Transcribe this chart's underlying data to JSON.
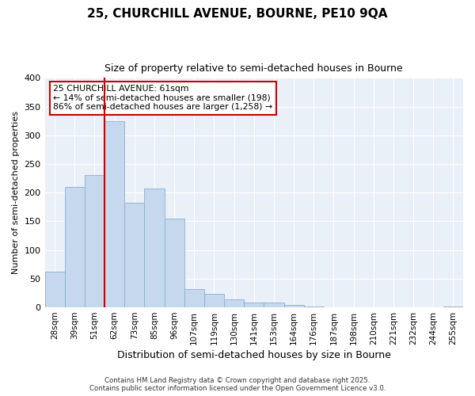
{
  "title_line1": "25, CHURCHILL AVENUE, BOURNE, PE10 9QA",
  "title_line2": "Size of property relative to semi-detached houses in Bourne",
  "xlabel": "Distribution of semi-detached houses by size in Bourne",
  "ylabel": "Number of semi-detached properties",
  "categories": [
    "28sqm",
    "39sqm",
    "51sqm",
    "62sqm",
    "73sqm",
    "85sqm",
    "96sqm",
    "107sqm",
    "119sqm",
    "130sqm",
    "141sqm",
    "153sqm",
    "164sqm",
    "176sqm",
    "187sqm",
    "198sqm",
    "210sqm",
    "221sqm",
    "232sqm",
    "244sqm",
    "255sqm"
  ],
  "values": [
    62,
    210,
    230,
    325,
    183,
    207,
    155,
    32,
    24,
    14,
    9,
    9,
    4,
    2,
    0,
    0,
    0,
    0,
    0,
    0,
    2
  ],
  "bar_color": "#c5d8ee",
  "bar_edge_color": "#8ab0d0",
  "vline_color": "#cc0000",
  "annotation_title": "25 CHURCHILL AVENUE: 61sqm",
  "annotation_line2": "← 14% of semi-detached houses are smaller (198)",
  "annotation_line3": "86% of semi-detached houses are larger (1,258) →",
  "annotation_box_facecolor": "#ffffff",
  "annotation_edge_color": "#cc0000",
  "ylim": [
    0,
    400
  ],
  "yticks": [
    0,
    50,
    100,
    150,
    200,
    250,
    300,
    350,
    400
  ],
  "background_color": "#eaf0f8",
  "grid_color": "#ffffff",
  "footer_line1": "Contains HM Land Registry data © Crown copyright and database right 2025.",
  "footer_line2": "Contains public sector information licensed under the Open Government Licence v3.0."
}
